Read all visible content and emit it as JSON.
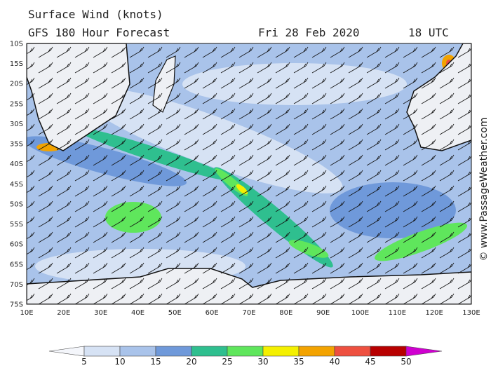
{
  "header": {
    "title": "Surface Wind (knots)",
    "subtitle": "GFS 180 Hour Forecast",
    "date": "Fri 28 Feb 2020",
    "time": "18 UTC"
  },
  "map": {
    "lat_labels": [
      "10S",
      "15S",
      "20S",
      "25S",
      "30S",
      "35S",
      "40S",
      "45S",
      "50S",
      "55S",
      "60S",
      "65S",
      "70S",
      "75S"
    ],
    "lon_labels": [
      "10E",
      "20E",
      "30E",
      "40E",
      "50E",
      "60E",
      "70E",
      "80E",
      "90E",
      "100E",
      "110E",
      "120E",
      "130E"
    ]
  },
  "colorbar": {
    "labels": [
      5,
      10,
      15,
      20,
      25,
      30,
      35,
      40,
      45,
      50
    ],
    "colors": [
      "#f4f6fb",
      "#d6e2f4",
      "#a9c3ea",
      "#6f99da",
      "#2fbf8f",
      "#5fe65c",
      "#f4f000",
      "#f3a300",
      "#ee5040",
      "#b80000",
      "#d000d0"
    ]
  },
  "credit": "© www.PassageWeather.com"
}
